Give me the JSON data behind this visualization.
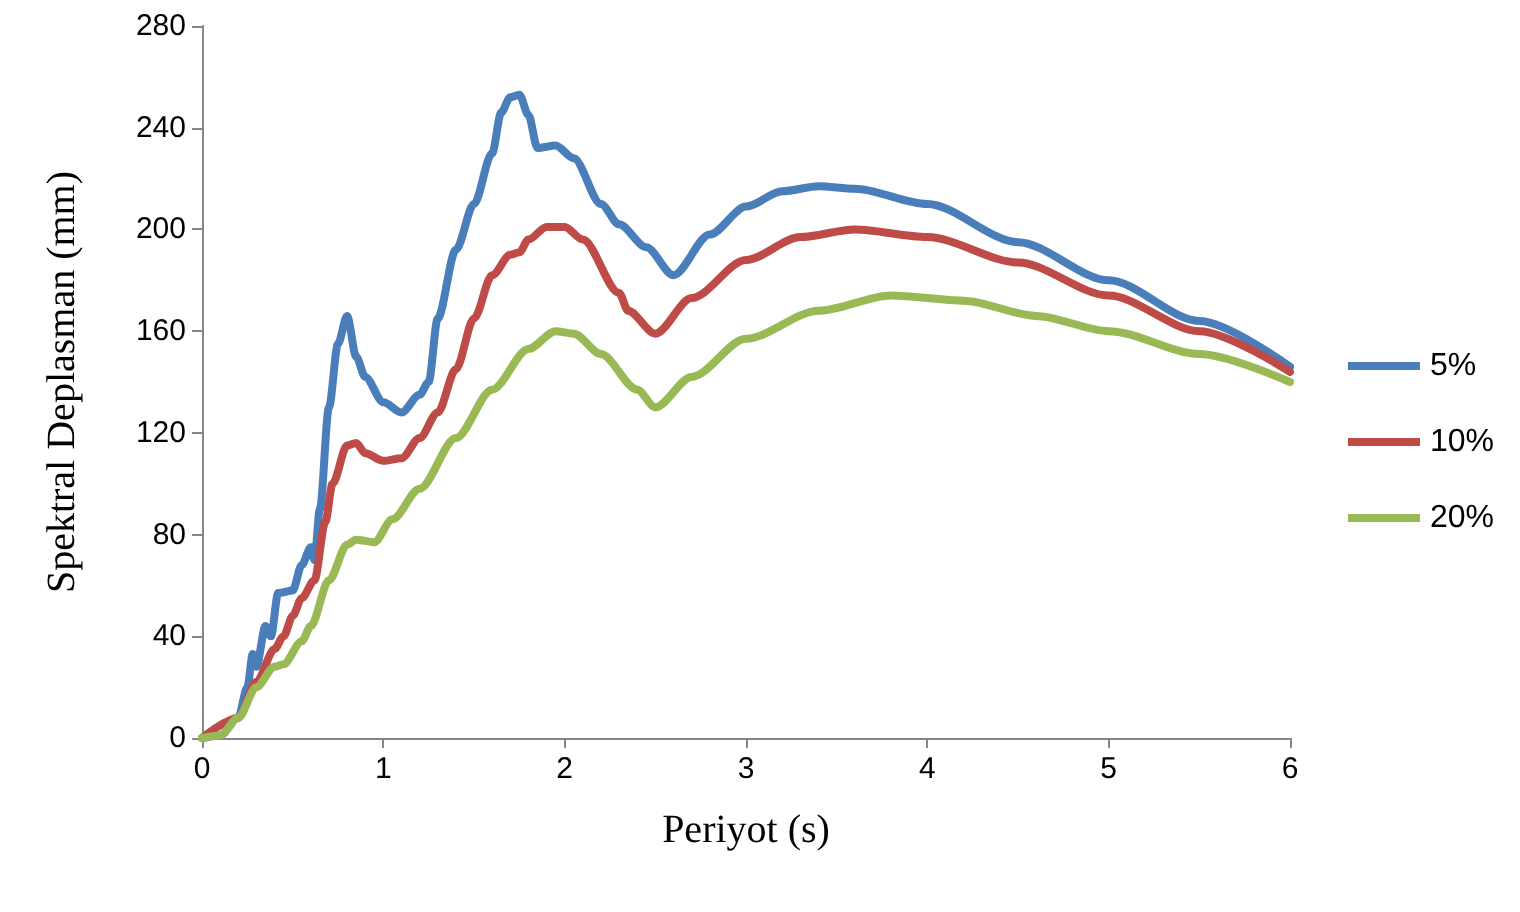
{
  "chart_data": {
    "type": "line",
    "xlabel": "Periyot (s)",
    "ylabel": "Spektral Deplasman (mm)",
    "xlim": [
      0,
      6
    ],
    "xticks": [
      0,
      1,
      2,
      3,
      4,
      5,
      6
    ],
    "ylim": [
      0,
      280
    ],
    "yticks": [
      0,
      40,
      80,
      120,
      160,
      200,
      240,
      280
    ],
    "grid": false,
    "legend": "right",
    "marker": "none",
    "line_style": "solid",
    "series": [
      {
        "name": "5%",
        "color": "#4a7ebb",
        "x": [
          0,
          0.1,
          0.2,
          0.25,
          0.28,
          0.3,
          0.35,
          0.38,
          0.42,
          0.5,
          0.55,
          0.6,
          0.62,
          0.65,
          0.7,
          0.75,
          0.8,
          0.85,
          0.9,
          1.0,
          1.1,
          1.2,
          1.25,
          1.3,
          1.4,
          1.5,
          1.6,
          1.65,
          1.7,
          1.75,
          1.8,
          1.85,
          1.95,
          2.05,
          2.2,
          2.3,
          2.45,
          2.6,
          2.8,
          3.0,
          3.2,
          3.4,
          3.6,
          4.0,
          4.5,
          5.0,
          5.5,
          6.0
        ],
        "values": [
          0,
          1,
          8,
          20,
          33,
          28,
          44,
          40,
          57,
          58,
          68,
          75,
          70,
          90,
          130,
          155,
          166,
          150,
          142,
          132,
          128,
          135,
          140,
          165,
          192,
          210,
          230,
          246,
          252,
          253,
          245,
          232,
          233,
          228,
          210,
          202,
          193,
          182,
          198,
          209,
          215,
          217,
          216,
          210,
          195,
          180,
          164,
          146
        ]
      },
      {
        "name": "10%",
        "color": "#be4b48",
        "x": [
          0,
          0.2,
          0.3,
          0.4,
          0.45,
          0.5,
          0.55,
          0.62,
          0.68,
          0.72,
          0.8,
          0.85,
          0.9,
          1.0,
          1.1,
          1.2,
          1.3,
          1.4,
          1.5,
          1.6,
          1.7,
          1.75,
          1.8,
          1.9,
          2.0,
          2.1,
          2.3,
          2.35,
          2.5,
          2.7,
          3.0,
          3.3,
          3.6,
          4.0,
          4.5,
          5.0,
          5.5,
          6.0
        ],
        "values": [
          0,
          8,
          22,
          35,
          40,
          48,
          55,
          62,
          85,
          100,
          115,
          116,
          112,
          109,
          110,
          118,
          128,
          145,
          165,
          182,
          190,
          191,
          196,
          201,
          201,
          196,
          175,
          168,
          159,
          173,
          188,
          197,
          200,
          197,
          187,
          174,
          160,
          144
        ]
      },
      {
        "name": "20%",
        "color": "#98b954",
        "x": [
          0,
          0.1,
          0.2,
          0.3,
          0.4,
          0.45,
          0.55,
          0.6,
          0.7,
          0.8,
          0.85,
          0.95,
          1.05,
          1.2,
          1.4,
          1.6,
          1.8,
          1.95,
          2.05,
          2.2,
          2.4,
          2.5,
          2.7,
          3.0,
          3.4,
          3.8,
          4.2,
          4.6,
          5.0,
          5.5,
          6.0
        ],
        "values": [
          0,
          1,
          8,
          20,
          28,
          29,
          38,
          44,
          62,
          76,
          78,
          77,
          86,
          98,
          118,
          137,
          153,
          160,
          159,
          151,
          137,
          130,
          142,
          157,
          168,
          174,
          172,
          166,
          160,
          151,
          140
        ]
      }
    ]
  }
}
